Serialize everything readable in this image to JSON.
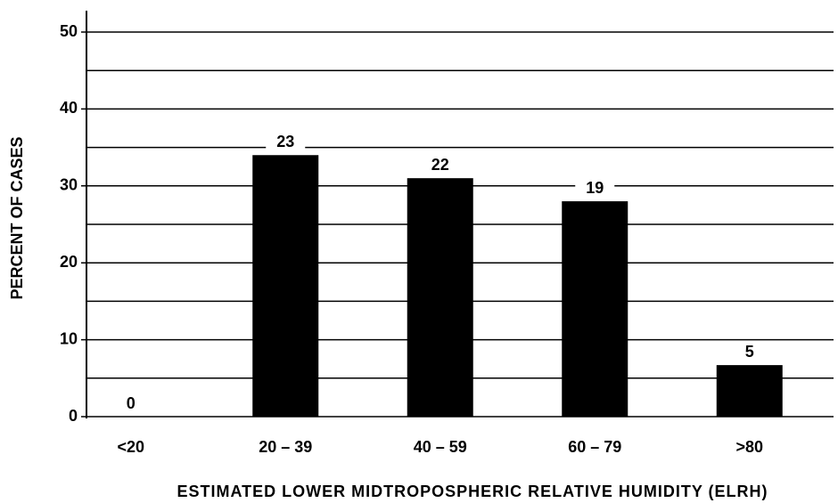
{
  "chart_data": {
    "type": "bar",
    "x_label": "ESTIMATED LOWER MIDTROPOSPHERIC RELATIVE HUMIDITY (ELRH)",
    "y_label": "PERCENT OF CASES",
    "categories": [
      "<20",
      "20 – 39",
      "40 – 59",
      "60 – 79",
      ">80"
    ],
    "values": [
      0,
      34,
      31,
      28,
      6.7
    ],
    "counts": [
      0,
      23,
      22,
      19,
      5
    ],
    "color": "#000000",
    "ylim": [
      0,
      50
    ],
    "yticks": [
      0,
      10,
      20,
      30,
      40,
      50
    ],
    "minor_yticks": [
      5,
      15,
      25,
      35,
      45
    ],
    "grid": true
  }
}
